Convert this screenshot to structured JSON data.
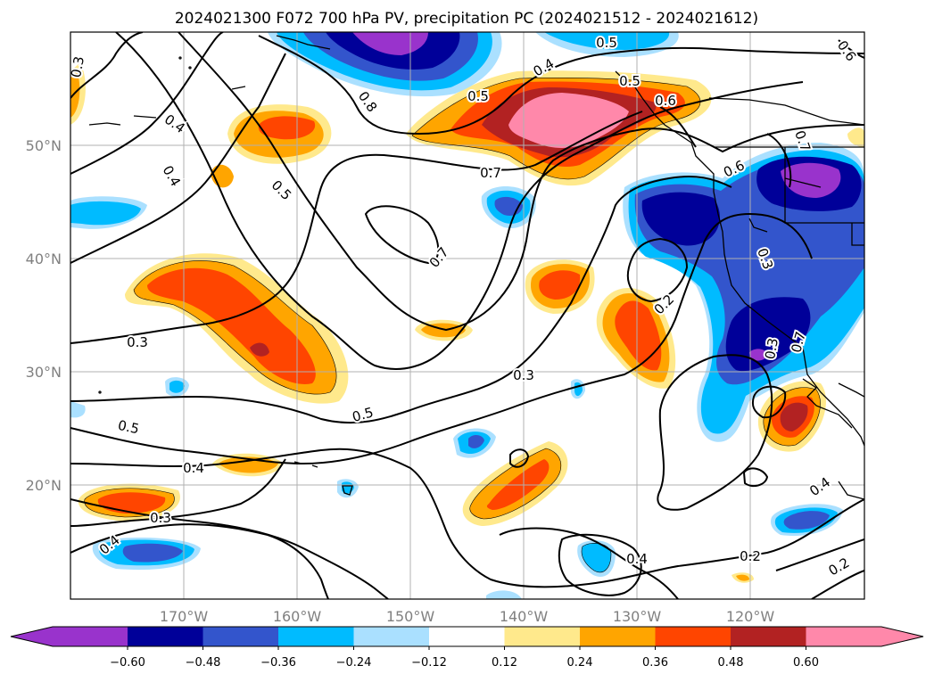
{
  "title": "2024021300 F072 700 hPa PV, precipitation PC (2024021512 - 2024021612)",
  "map": {
    "lat_labels": [
      "50°N",
      "40°N",
      "30°N",
      "20°N"
    ],
    "lon_labels": [
      "170°W",
      "160°W",
      "150°W",
      "140°W",
      "130°W",
      "120°W"
    ],
    "contour_labels": [
      "0.3",
      "0.4",
      "0.4",
      "0.5",
      "0.8",
      "0.5",
      "0.4",
      "0.6",
      "0.7",
      "0.6",
      "0.7",
      "0.5",
      "0.7",
      "0.6",
      "0.3",
      "0.7",
      "0.3",
      "0.2",
      "0.3",
      "0.5",
      "0.5",
      "0.4",
      "0.3",
      "0.4",
      "0.4",
      "0.2",
      "0.4",
      "0.2",
      "0.3",
      "0.5"
    ]
  },
  "colorbar": {
    "colors": [
      "#9933cc",
      "#000099",
      "#3355cc",
      "#00bbff",
      "#aae0ff",
      "#ffffff",
      "#ffe98c",
      "#ffa500",
      "#ff4500",
      "#b22222",
      "#ff88aa"
    ],
    "tick_labels": [
      "−0.60",
      "−0.48",
      "−0.36",
      "−0.24",
      "−0.12",
      "0.12",
      "0.24",
      "0.36",
      "0.48",
      "0.60"
    ]
  }
}
